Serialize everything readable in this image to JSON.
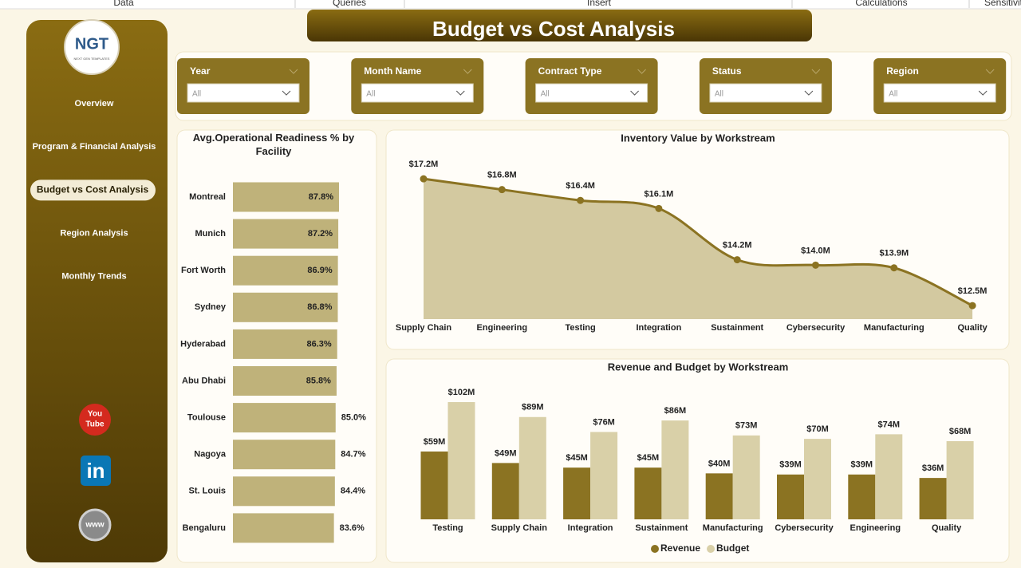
{
  "ribbon": [
    "Data",
    "Queries",
    "Insert",
    "Calculations",
    "Sensitivity"
  ],
  "logo": {
    "text": "NGT",
    "subtext": "NEXT GEN TEMPLATES"
  },
  "nav": [
    "Overview",
    "Program & Financial Analysis",
    "Budget vs Cost Analysis",
    "Region Analysis",
    "Monthly Trends"
  ],
  "active_nav": 2,
  "social": {
    "youtube": [
      "You",
      "Tube"
    ],
    "linkedin": "in",
    "web": "www"
  },
  "header": {
    "title": "Budget vs Cost  Analysis"
  },
  "filters": [
    {
      "label": "Year",
      "value": "All"
    },
    {
      "label": "Month Name",
      "value": "All"
    },
    {
      "label": "Contract Type",
      "value": "All"
    },
    {
      "label": "Status",
      "value": "All"
    },
    {
      "label": "Region",
      "value": "All"
    }
  ],
  "chart_data": [
    {
      "type": "bar",
      "orientation": "horizontal",
      "title": "Avg.Operational Readiness % by Facility",
      "categories": [
        "Montreal",
        "Munich",
        "Fort Worth",
        "Sydney",
        "Hyderabad",
        "Abu Dhabi",
        "Toulouse",
        "Nagoya",
        "St. Louis",
        "Bengaluru"
      ],
      "values": [
        87.8,
        87.2,
        86.9,
        86.8,
        86.3,
        85.8,
        85.0,
        84.7,
        84.4,
        83.6
      ],
      "value_labels": [
        "87.8%",
        "87.2%",
        "86.9%",
        "86.8%",
        "86.3%",
        "85.8%",
        "85.0%",
        "84.7%",
        "84.4%",
        "83.6%"
      ],
      "color": "#bfb27a",
      "xlim": [
        0,
        88
      ]
    },
    {
      "type": "area",
      "title": "Inventory Value by Workstream",
      "categories": [
        "Supply Chain",
        "Engineering",
        "Testing",
        "Integration",
        "Sustainment",
        "Cybersecurity",
        "Manufacturing",
        "Quality"
      ],
      "values": [
        17.2,
        16.8,
        16.4,
        16.1,
        14.2,
        14.0,
        13.9,
        12.5
      ],
      "value_labels": [
        "$17.2M",
        "$16.8M",
        "$16.4M",
        "$16.1M",
        "$14.2M",
        "$14.0M",
        "$13.9M",
        "$12.5M"
      ],
      "color": "#8b7322",
      "fill": "#d3c9a0",
      "ylim": [
        12,
        17.5
      ]
    },
    {
      "type": "column",
      "title": "Revenue and Budget by Workstream",
      "categories": [
        "Testing",
        "Supply Chain",
        "Integration",
        "Sustainment",
        "Manufacturing",
        "Cybersecurity",
        "Engineering",
        "Quality"
      ],
      "series": [
        {
          "name": "Revenue",
          "color": "#8b7322",
          "values": [
            59,
            49,
            45,
            45,
            40,
            39,
            39,
            36
          ],
          "value_labels": [
            "$59M",
            "$49M",
            "$45M",
            "$45M",
            "$40M",
            "$39M",
            "$39M",
            "$36M"
          ]
        },
        {
          "name": "Budget",
          "color": "#d9d0a8",
          "values": [
            102,
            89,
            76,
            86,
            73,
            70,
            74,
            68
          ],
          "value_labels": [
            "$102M",
            "$89M",
            "$76M",
            "$86M",
            "$73M",
            "$70M",
            "$74M",
            "$68M"
          ]
        }
      ],
      "ylim": [
        0,
        110
      ],
      "legend": "bottom"
    }
  ]
}
